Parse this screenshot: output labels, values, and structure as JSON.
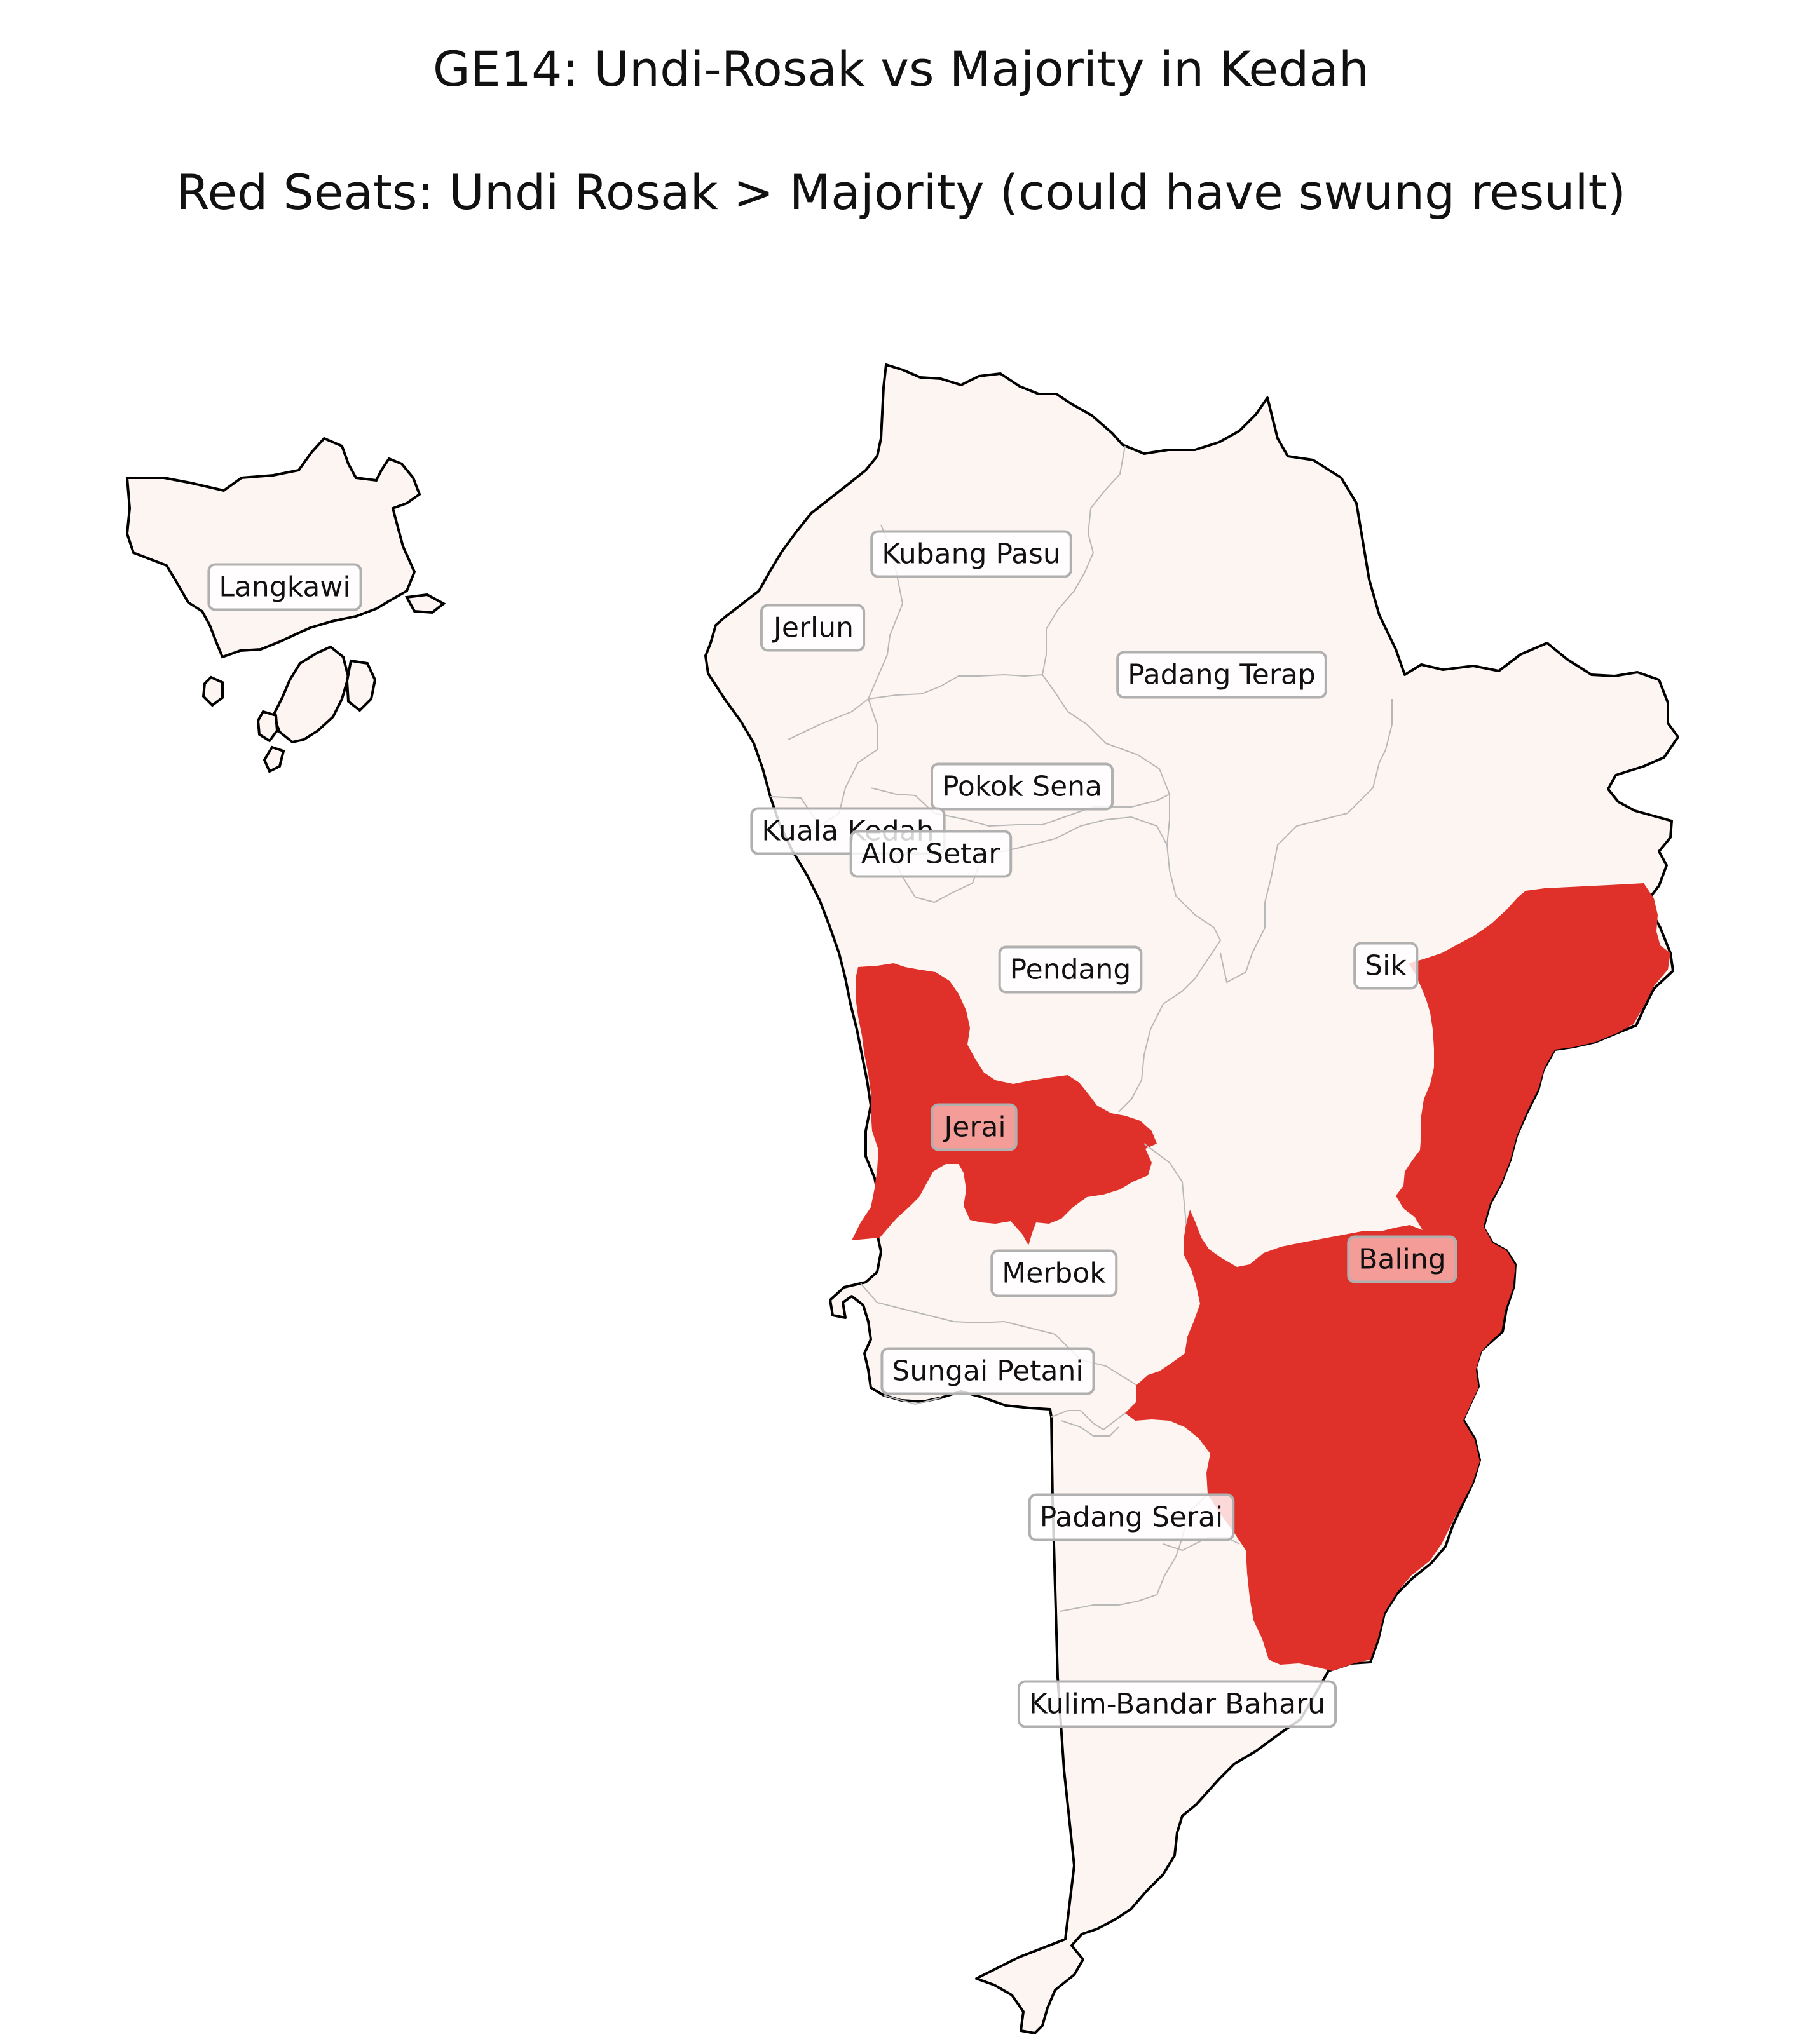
{
  "title": "GE14: Undi-Rosak vs Majority in Kedah",
  "subtitle": "Red Seats: Undi Rosak > Majority (could have swung result)",
  "colors": {
    "swing": "#e0302a",
    "normal": "#fdf5f1",
    "border": "#000000",
    "internal_border": "#b8b8b8"
  },
  "seats": [
    {
      "name": "Langkawi",
      "swing": false
    },
    {
      "name": "Kubang Pasu",
      "swing": false
    },
    {
      "name": "Jerlun",
      "swing": false
    },
    {
      "name": "Padang Terap",
      "swing": false
    },
    {
      "name": "Pokok Sena",
      "swing": false
    },
    {
      "name": "Kuala Kedah",
      "swing": false
    },
    {
      "name": "Alor Setar",
      "swing": false
    },
    {
      "name": "Pendang",
      "swing": false
    },
    {
      "name": "Sik",
      "swing": false
    },
    {
      "name": "Jerai",
      "swing": true
    },
    {
      "name": "Baling",
      "swing": true
    },
    {
      "name": "Merbok",
      "swing": false
    },
    {
      "name": "Sungai Petani",
      "swing": false
    },
    {
      "name": "Padang Serai",
      "swing": false
    },
    {
      "name": "Kulim-Bandar Baharu",
      "swing": false
    }
  ]
}
